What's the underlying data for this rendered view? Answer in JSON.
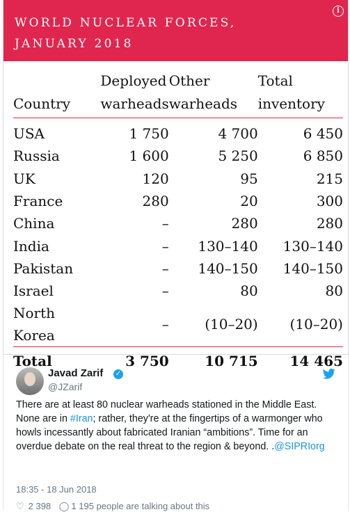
{
  "infographic": {
    "title_line1": "WORLD NUCLEAR FORCES,",
    "title_line2": "JANUARY 2018",
    "info_glyph": "i",
    "colors": {
      "banner": "#e0264f",
      "rule": "#e0264f"
    },
    "headers": {
      "country": "Country",
      "deployed_1": "Deployed",
      "deployed_2": "warheads",
      "other_1": "Other",
      "other_2": "warheads",
      "total_1": "Total",
      "total_2": "inventory"
    },
    "rows": [
      {
        "country": "USA",
        "deployed": "1 750",
        "other": "4 700",
        "total": "6 450"
      },
      {
        "country": "Russia",
        "deployed": "1 600",
        "other": "5 250",
        "total": "6 850"
      },
      {
        "country": "UK",
        "deployed": "120",
        "other": "95",
        "total": "215"
      },
      {
        "country": "France",
        "deployed": "280",
        "other": "20",
        "total": "300"
      },
      {
        "country": "China",
        "deployed": "–",
        "other": "280",
        "total": "280"
      },
      {
        "country": "India",
        "deployed": "–",
        "other": "130–140",
        "total": "130–140"
      },
      {
        "country": "Pakistan",
        "deployed": "–",
        "other": "140–150",
        "total": "140–150"
      },
      {
        "country": "Israel",
        "deployed": "–",
        "other": "80",
        "total": "80"
      },
      {
        "country": "North Korea",
        "deployed": "–",
        "other": "(10–20)",
        "total": "(10–20)"
      }
    ],
    "total": {
      "label": "Total",
      "deployed": "3 750",
      "other": "10 715",
      "total": "14 465"
    }
  },
  "tweet": {
    "name": "Javad Zarif",
    "handle": "@JZarif",
    "verified_glyph": "✓",
    "twitter_icon": "twitter-bird-icon",
    "text_part1": "There are at least 80 nuclear warheads stationed in the Middle East. None are in ",
    "hashtag": "#Iran",
    "text_part2": "; rather, they're at the fingertips of a warmonger who howls incessantly about fabricated Iranian “ambitions”. Time for an overdue debate on the real threat to the region & beyond. .",
    "mention": "@SIPRIorg",
    "timestamp": "18:35 - 18 Jun 2018",
    "likes": "2 398",
    "talking": "1 195 people are talking about this",
    "colors": {
      "link": "#1b95e0",
      "verified": "#1da1f2"
    }
  }
}
